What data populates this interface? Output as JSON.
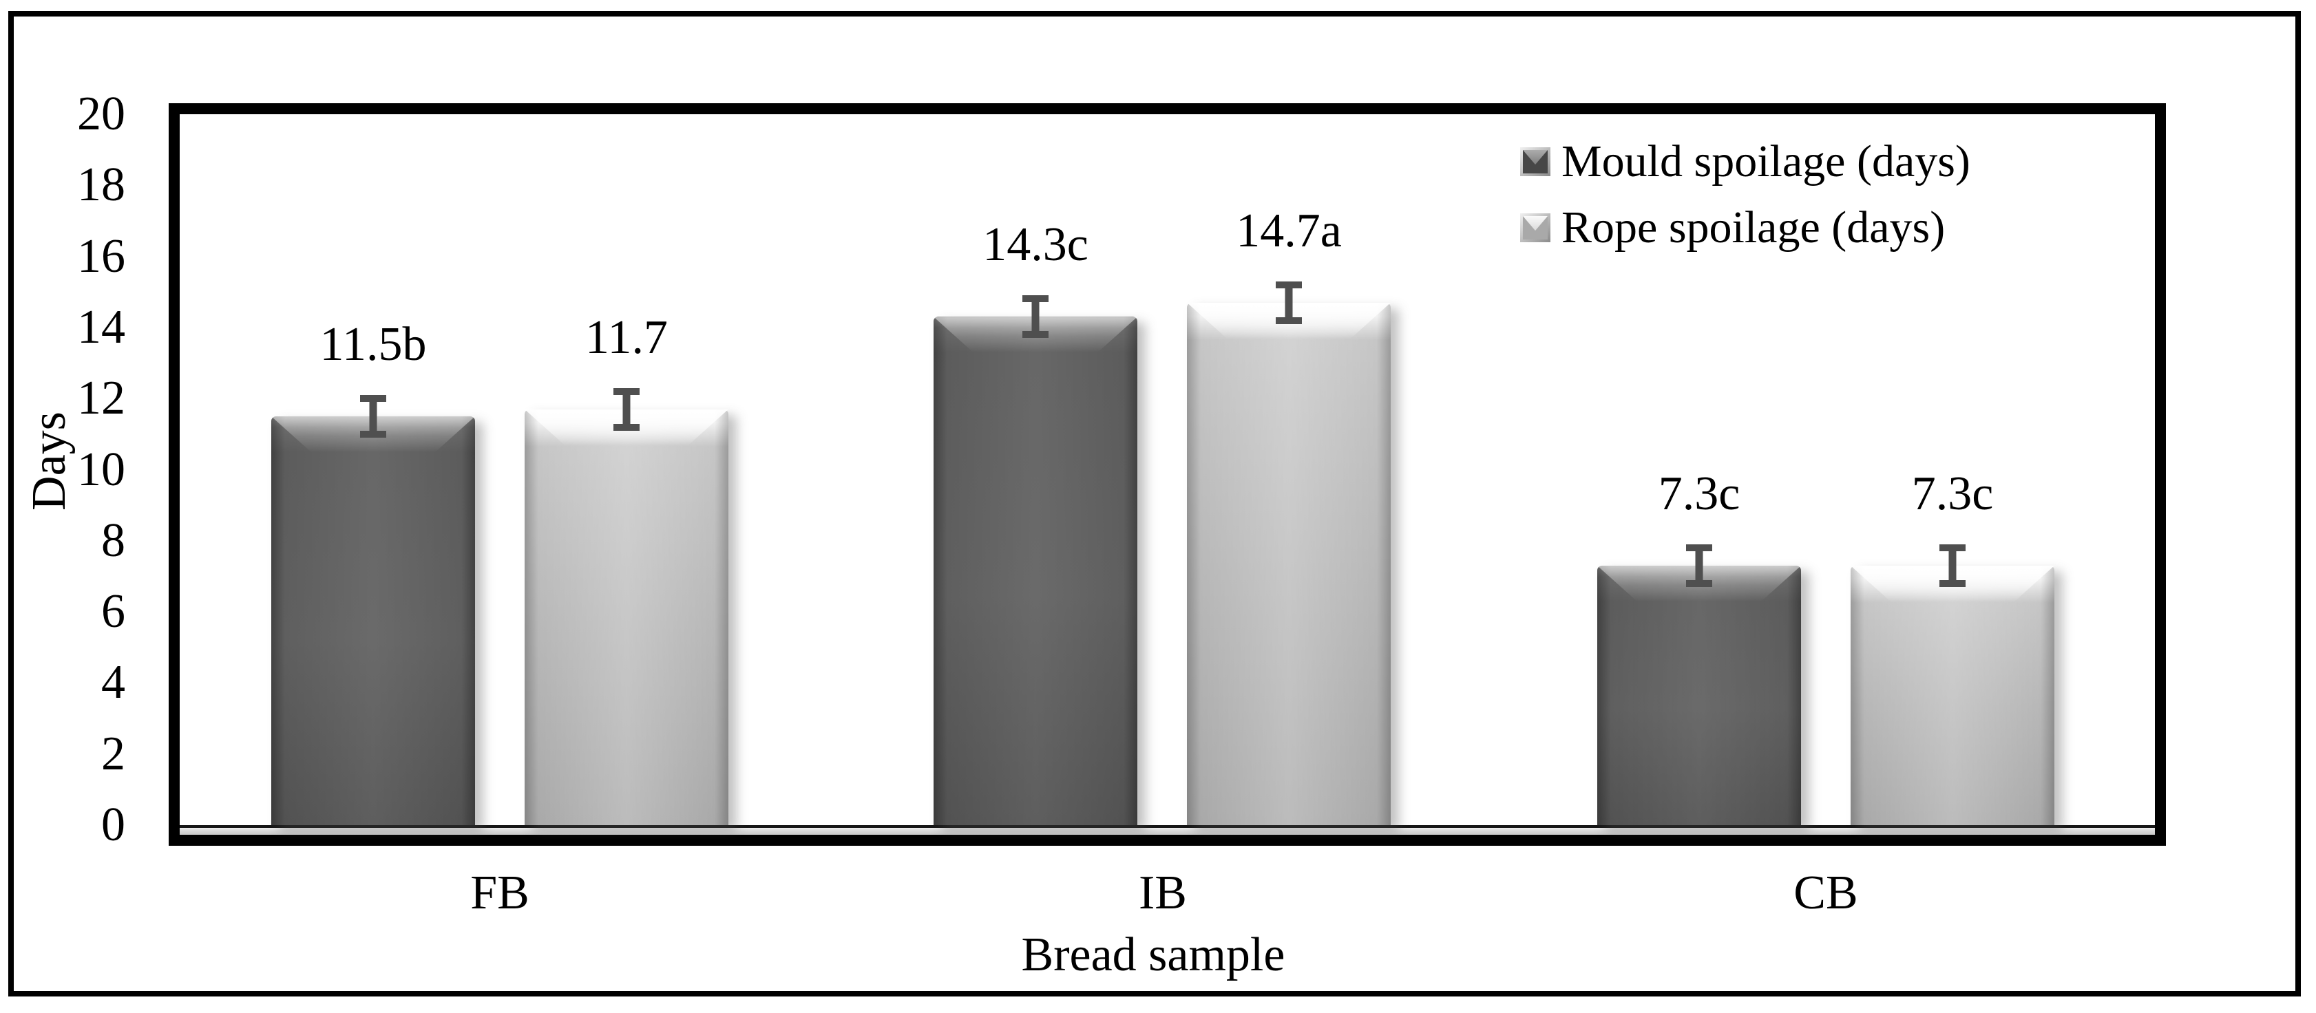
{
  "chart_data": {
    "type": "bar",
    "title": "",
    "categories": [
      "FB",
      "IB",
      "CB"
    ],
    "series": [
      {
        "name": "Mould spoilage (days)",
        "key": "mould",
        "color": "#5c5c5c",
        "values": [
          11.5,
          14.3,
          7.3
        ],
        "labels": [
          "11.5b",
          "14.3c",
          "7.3c"
        ]
      },
      {
        "name": "Rope spoilage (days)",
        "key": "rope",
        "color": "#b7b7b7",
        "values": [
          11.7,
          14.7,
          7.3
        ],
        "labels": [
          "11.7",
          "14.7a",
          "7.3c"
        ]
      }
    ],
    "error_bar_days": 0.6,
    "ylabel": "Days",
    "xlabel": "Bread sample",
    "ylim": [
      0,
      20
    ],
    "yticks": [
      0,
      2,
      4,
      6,
      8,
      10,
      12,
      14,
      16,
      18,
      20
    ],
    "grid": false,
    "legend_position": "top-right"
  },
  "colors": {
    "dark_series": "#5c5c5c",
    "light_series": "#b7b7b7",
    "error_bar": "#4f4f4f",
    "frame": "#000000",
    "floor_strip": "#d9d9d9",
    "background": "#ffffff"
  }
}
